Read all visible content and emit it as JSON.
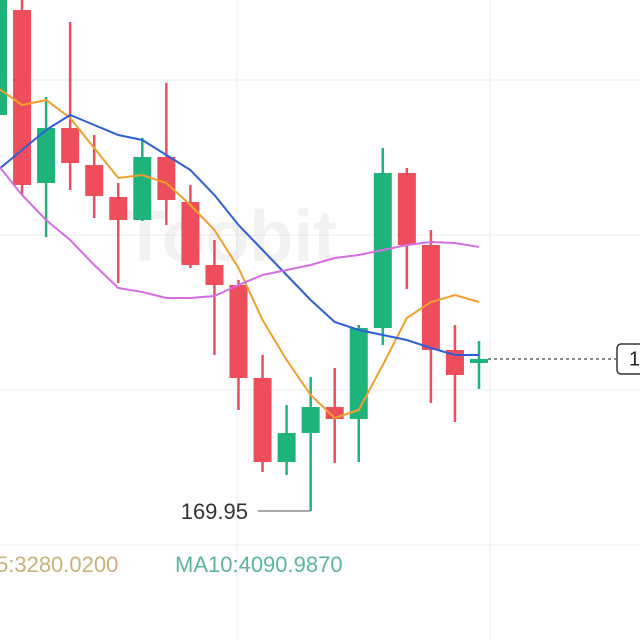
{
  "chart_data": {
    "type": "candlestick",
    "watermark": "Toobit",
    "categories": [
      null,
      null,
      null,
      null,
      null,
      null,
      null,
      null,
      null,
      null,
      null,
      null,
      null,
      null,
      null,
      null,
      null,
      null,
      null,
      null,
      null
    ],
    "open": [
      177.87,
      179.97,
      176.51,
      177.61,
      176.87,
      176.23,
      175.77,
      177.03,
      176.13,
      174.87,
      174.47,
      172.61,
      170.93,
      171.51,
      172.03,
      171.79,
      173.61,
      176.71,
      175.27,
      173.17,
      172.91
    ],
    "high": [
      180.17,
      180.17,
      178.23,
      179.73,
      177.47,
      176.51,
      177.41,
      178.51,
      176.47,
      175.37,
      174.57,
      173.07,
      172.07,
      172.63,
      172.81,
      173.67,
      177.21,
      176.81,
      175.57,
      173.67,
      173.35
    ],
    "low": [
      177.67,
      176.27,
      175.43,
      176.37,
      175.81,
      174.51,
      175.75,
      175.67,
      174.81,
      173.07,
      171.97,
      170.73,
      170.67,
      169.95,
      170.91,
      170.93,
      173.27,
      174.39,
      172.11,
      171.73,
      172.39
    ],
    "close": [
      180.17,
      176.47,
      177.61,
      176.91,
      176.25,
      175.77,
      177.03,
      176.17,
      174.87,
      174.47,
      172.61,
      170.93,
      171.51,
      172.03,
      171.79,
      173.61,
      176.71,
      175.27,
      173.17,
      172.67,
      172.99
    ],
    "up_color": "#1db37a",
    "down_color": "#ee4d5c",
    "lines": [
      {
        "color": "#f0a02c",
        "values": [
          178.41,
          178.07,
          178.17,
          177.81,
          177.21,
          176.61,
          176.67,
          176.51,
          176.07,
          175.57,
          174.81,
          173.77,
          172.97,
          172.27,
          171.81,
          171.97,
          172.87,
          173.81,
          174.13,
          174.27,
          174.13
        ]
      },
      {
        "color": "#2f5fd6",
        "values": [
          176.77,
          177.17,
          177.57,
          177.87,
          177.67,
          177.47,
          177.37,
          177.07,
          176.77,
          176.27,
          175.67,
          175.17,
          174.67,
          174.17,
          173.73,
          173.57,
          173.47,
          173.37,
          173.21,
          173.07,
          173.07
        ]
      },
      {
        "color": "#d56ee2",
        "values": [
          176.87,
          176.27,
          175.77,
          175.37,
          174.87,
          174.41,
          174.33,
          174.21,
          174.21,
          174.25,
          174.47,
          174.67,
          174.77,
          174.87,
          175.01,
          175.07,
          175.17,
          175.27,
          175.33,
          175.31,
          175.23
        ]
      }
    ],
    "ylim": [
      169.27,
      180.17
    ],
    "price_tag": "1",
    "legend": [
      {
        "text": "5:3280.0200",
        "color": "#c8b27a"
      },
      {
        "text": "MA10:4090.9870",
        "color": "#5cb59c"
      }
    ]
  }
}
